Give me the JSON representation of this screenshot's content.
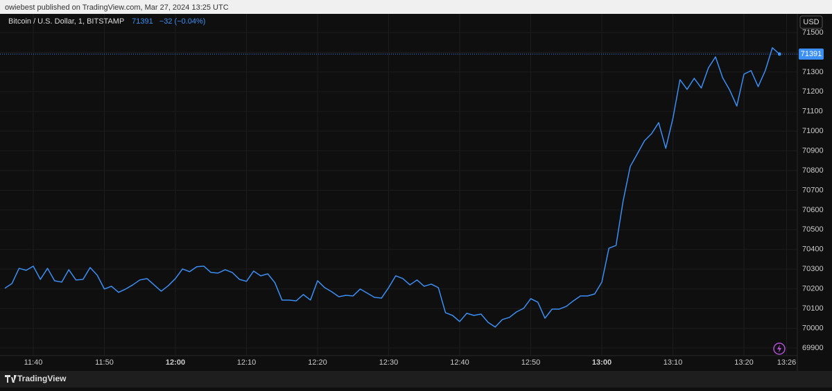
{
  "header": "owiebest published on TradingView.com, Mar 27, 2024 13:25 UTC",
  "footer": "TradingView",
  "chart_data": {
    "type": "line",
    "title": "Bitcoin / U.S. Dollar, 1, BITSTAMP",
    "change": "−32 (−0.04%)",
    "currency": "USD",
    "categories": [
      null,
      null,
      null,
      null,
      "11:40",
      null,
      null,
      null,
      null,
      null,
      null,
      null,
      null,
      null,
      "11:50",
      null,
      null,
      null,
      null,
      null,
      null,
      null,
      null,
      null,
      "12:00",
      null,
      null,
      null,
      null,
      null,
      null,
      null,
      null,
      null,
      "12:10",
      null,
      null,
      null,
      null,
      null,
      null,
      null,
      null,
      null,
      "12:20",
      null,
      null,
      null,
      null,
      null,
      null,
      null,
      null,
      null,
      "12:30",
      null,
      null,
      null,
      null,
      null,
      null,
      null,
      null,
      null,
      "12:40",
      null,
      null,
      null,
      null,
      null,
      null,
      null,
      null,
      null,
      "12:50",
      null,
      null,
      null,
      null,
      null,
      null,
      null,
      null,
      null,
      "13:00",
      null,
      null,
      null,
      null,
      null,
      null,
      null,
      null,
      null,
      "13:10",
      null,
      null,
      null,
      null,
      null,
      null,
      null,
      null,
      null,
      "13:20",
      null,
      null,
      null,
      null,
      null,
      "13:26"
    ],
    "series": [
      {
        "name": "Bitcoin / U.S. Dollar",
        "color": "#3b8ff5",
        "values": [
          70203,
          70227,
          70304,
          70294,
          70315,
          70248,
          70304,
          70241,
          70234,
          70297,
          70245,
          70248,
          70308,
          70269,
          70199,
          70213,
          70182,
          70199,
          70220,
          70245,
          70252,
          70220,
          70188,
          70216,
          70252,
          70301,
          70287,
          70312,
          70315,
          70283,
          70280,
          70297,
          70283,
          70248,
          70238,
          70290,
          70266,
          70276,
          70231,
          70143,
          70143,
          70139,
          70171,
          70143,
          70241,
          70206,
          70185,
          70160,
          70167,
          70164,
          70199,
          70178,
          70157,
          70153,
          70206,
          70266,
          70252,
          70220,
          70245,
          70213,
          70224,
          70206,
          70079,
          70065,
          70034,
          70076,
          70065,
          70072,
          70030,
          70006,
          70044,
          70055,
          70083,
          70101,
          70150,
          70132,
          70051,
          70097,
          70097,
          70111,
          70139,
          70164,
          70164,
          70174,
          70234,
          70406,
          70420,
          70646,
          70821,
          70885,
          70951,
          70987,
          71043,
          70913,
          71064,
          71261,
          71212,
          71268,
          71219,
          71321,
          71377,
          71271,
          71208,
          71127,
          71289,
          71307,
          71226,
          71307,
          71423,
          71391,
          null
        ]
      }
    ],
    "ylim": [
      69861,
      71595
    ],
    "yticks": [
      69900,
      70000,
      70100,
      70200,
      70300,
      70400,
      70500,
      70600,
      70700,
      70800,
      70900,
      71000,
      71100,
      71200,
      71300,
      71400,
      71500
    ],
    "grid": true
  }
}
